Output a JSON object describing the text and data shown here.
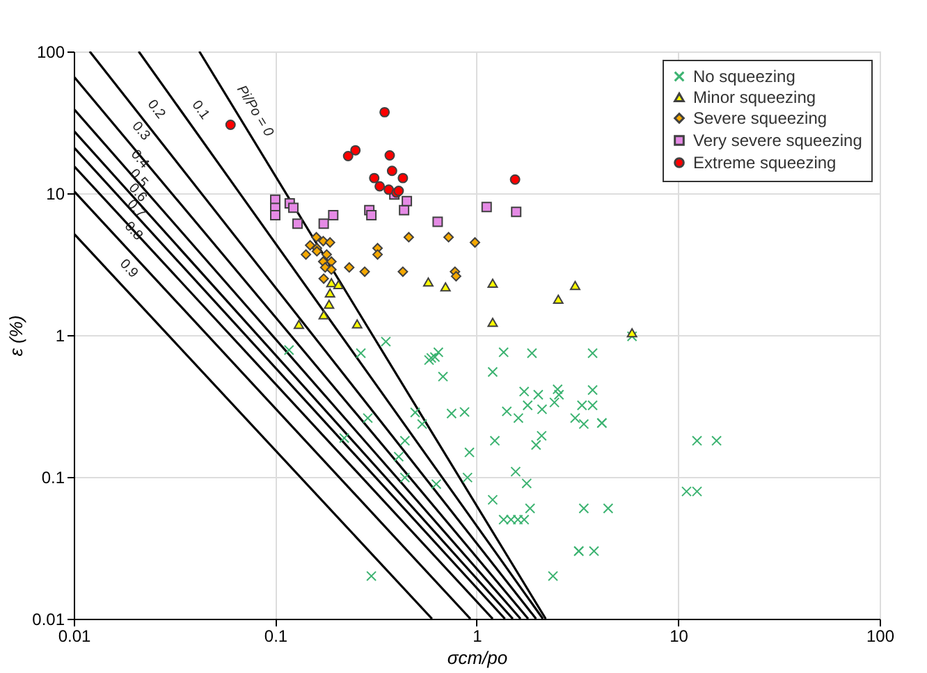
{
  "chart_data": {
    "type": "scatter",
    "xlabel": "σcm/po",
    "ylabel": "ε (%)",
    "log": "xy",
    "xlim": [
      0.01,
      100
    ],
    "ylim": [
      0.01,
      100
    ],
    "xticks": [
      0.01,
      0.1,
      1,
      10,
      100
    ],
    "yticks": [
      0.01,
      0.1,
      1,
      10,
      100
    ],
    "grid": true,
    "legend": "top right",
    "series": [
      {
        "name": "No squeezing",
        "marker": "cross",
        "color": "#3cb371",
        "x": [
          0.117,
          0.266,
          0.354,
          0.58,
          0.595,
          0.62,
          0.645,
          0.68,
          1.36,
          1.88,
          3.76,
          1.2,
          1.72,
          2.02,
          1.79,
          2.11,
          2.52,
          2.56,
          2.43,
          3.33,
          3.76,
          3.76,
          3.08,
          3.4,
          4.18,
          4.18,
          1.41,
          1.61,
          2.1,
          1.97,
          1.23,
          0.75,
          0.87,
          0.495,
          0.536,
          0.288,
          0.22,
          0.44,
          0.41,
          0.92,
          0.44,
          0.9,
          0.63,
          1.56,
          1.77,
          1.2,
          1.36,
          1.48,
          1.6,
          1.72,
          1.84,
          3.4,
          4.49,
          3.21,
          3.21,
          3.82,
          2.39,
          0.3,
          5.9,
          11.0,
          12.4,
          12.4,
          15.5
        ],
        "values": [
          0.785,
          0.746,
          0.9,
          0.667,
          0.69,
          0.7,
          0.757,
          0.51,
          0.757,
          0.746,
          0.746,
          0.55,
          0.4,
          0.38,
          0.32,
          0.3,
          0.415,
          0.38,
          0.335,
          0.32,
          0.41,
          0.32,
          0.26,
          0.236,
          0.24,
          0.24,
          0.29,
          0.26,
          0.195,
          0.168,
          0.18,
          0.28,
          0.287,
          0.285,
          0.236,
          0.26,
          0.188,
          0.18,
          0.139,
          0.149,
          0.099,
          0.099,
          0.089,
          0.109,
          0.09,
          0.069,
          0.05,
          0.05,
          0.05,
          0.05,
          0.06,
          0.06,
          0.06,
          0.03,
          0.03,
          0.03,
          0.02,
          0.02,
          0.98,
          0.079,
          0.079,
          0.18,
          0.18
        ]
      },
      {
        "name": "Minor squeezing",
        "marker": "triangle",
        "color": "#ffff00",
        "x": [
          0.131,
          0.174,
          0.185,
          0.187,
          0.19,
          0.206,
          0.255,
          0.575,
          0.7,
          1.2,
          1.2,
          2.54,
          3.08,
          5.9
        ],
        "values": [
          1.19,
          1.39,
          1.65,
          1.98,
          2.34,
          2.27,
          1.2,
          2.37,
          2.19,
          2.32,
          1.23,
          1.79,
          2.24,
          1.04
        ]
      },
      {
        "name": "Severe squeezing",
        "marker": "diamond",
        "color": "#f5a800",
        "x": [
          0.16,
          0.149,
          0.161,
          0.173,
          0.187,
          0.142,
          0.161,
          0.173,
          0.18,
          0.19,
          0.177,
          0.19,
          0.174,
          0.233,
          0.278,
          0.322,
          0.322,
          0.43,
          0.46,
          0.725,
          0.98,
          0.78,
          0.79
        ],
        "values": [
          4.9,
          4.3,
          4.1,
          4.6,
          4.5,
          3.7,
          3.9,
          3.3,
          3.7,
          3.3,
          3.0,
          2.9,
          2.5,
          3.0,
          2.8,
          4.1,
          3.7,
          2.8,
          4.9,
          4.9,
          4.5,
          2.8,
          2.6
        ]
      },
      {
        "name": "Very severe squeezing",
        "marker": "square",
        "color": "#e58ae5",
        "x": [
          0.1,
          0.1,
          0.1,
          0.118,
          0.123,
          0.129,
          0.174,
          0.194,
          0.293,
          0.3,
          0.436,
          0.45,
          0.64,
          1.12,
          1.57,
          0.39
        ],
        "values": [
          9.0,
          7.9,
          7.0,
          8.5,
          7.9,
          6.1,
          6.1,
          7.0,
          7.6,
          7.0,
          7.6,
          8.8,
          6.3,
          8.0,
          7.4,
          9.8
        ]
      },
      {
        "name": "Extreme squeezing",
        "marker": "circle",
        "color": "#ff0000",
        "x": [
          0.06,
          0.349,
          0.23,
          0.25,
          0.37,
          0.38,
          0.31,
          0.33,
          0.366,
          0.4,
          0.41,
          0.43,
          1.55
        ],
        "values": [
          30.4,
          37.3,
          18.3,
          20.1,
          18.5,
          14.4,
          12.8,
          11.2,
          10.6,
          10.1,
          10.4,
          12.8,
          12.5
        ]
      },
      {
        "name": "Pi/Po = 0",
        "type": "line",
        "color": "#000000",
        "x": [
          0.042,
          2.2
        ],
        "values": [
          100,
          0.01
        ]
      },
      {
        "name": "0.1",
        "type": "line",
        "color": "#000000",
        "x": [
          0.021,
          2.13
        ],
        "values": [
          100,
          0.01
        ]
      },
      {
        "name": "0.2",
        "type": "line",
        "color": "#000000",
        "x": [
          0.012,
          1.97
        ],
        "values": [
          100,
          0.01
        ]
      },
      {
        "name": "0.3",
        "type": "line",
        "color": "#000000",
        "x": [
          0.01,
          1.8
        ],
        "values": [
          66.6,
          0.01
        ]
      },
      {
        "name": "0.4",
        "type": "line",
        "color": "#000000",
        "x": [
          0.01,
          1.65
        ],
        "values": [
          39.4,
          0.01
        ]
      },
      {
        "name": "0.5",
        "type": "line",
        "color": "#000000",
        "x": [
          0.01,
          1.51
        ],
        "values": [
          27.6,
          0.01
        ]
      },
      {
        "name": "0.6",
        "type": "line",
        "color": "#000000",
        "x": [
          0.01,
          1.38
        ],
        "values": [
          21.1,
          0.01
        ]
      },
      {
        "name": "0.7",
        "type": "line",
        "color": "#000000",
        "x": [
          0.01,
          1.2
        ],
        "values": [
          15.6,
          0.01
        ]
      },
      {
        "name": "0.8",
        "type": "line",
        "color": "#000000",
        "x": [
          0.01,
          0.93
        ],
        "values": [
          10.4,
          0.01
        ]
      },
      {
        "name": "0.9",
        "type": "line",
        "color": "#000000",
        "x": [
          0.01,
          0.6
        ],
        "values": [
          5.2,
          0.01
        ]
      }
    ]
  }
}
